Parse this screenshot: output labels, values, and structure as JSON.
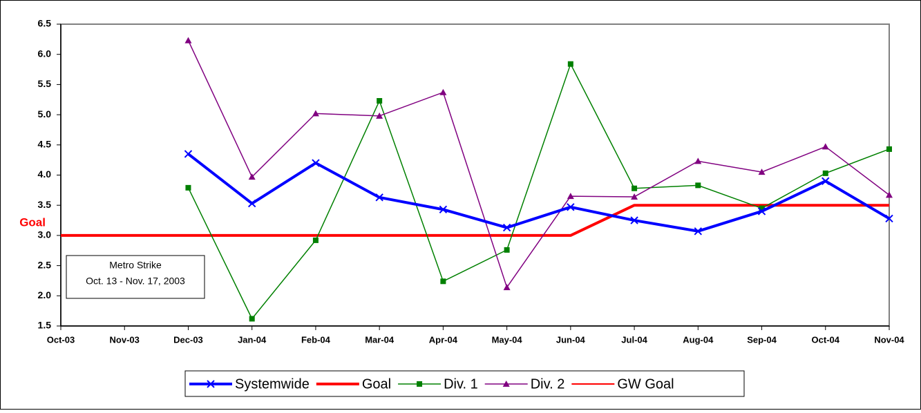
{
  "chart_data": {
    "type": "line",
    "categories": [
      "Oct-03",
      "Nov-03",
      "Dec-03",
      "Jan-04",
      "Feb-04",
      "Mar-04",
      "Apr-04",
      "May-04",
      "Jun-04",
      "Jul-04",
      "Aug-04",
      "Sep-04",
      "Oct-04",
      "Nov-04"
    ],
    "series": [
      {
        "name": "Systemwide",
        "color": "#0000ff",
        "width": 4,
        "marker": "x",
        "values": [
          null,
          null,
          4.35,
          3.53,
          4.2,
          3.63,
          3.43,
          3.13,
          3.47,
          3.25,
          3.07,
          3.4,
          3.9,
          3.28
        ]
      },
      {
        "name": "Goal",
        "color": "#ff0000",
        "width": 4,
        "marker": "none",
        "values": [
          3,
          3,
          3,
          3,
          3,
          3,
          3,
          3,
          3,
          3.5,
          3.5,
          3.5,
          3.5,
          3.5
        ]
      },
      {
        "name": "Div. 1",
        "color": "#008000",
        "width": 1.5,
        "marker": "square",
        "values": [
          null,
          null,
          3.79,
          1.62,
          2.92,
          5.23,
          2.24,
          2.76,
          5.84,
          3.78,
          3.83,
          3.45,
          4.03,
          4.43
        ]
      },
      {
        "name": "Div. 2",
        "color": "#800080",
        "width": 1.5,
        "marker": "triangle",
        "values": [
          null,
          null,
          6.23,
          3.97,
          5.02,
          4.98,
          5.37,
          2.14,
          3.65,
          3.64,
          4.23,
          4.05,
          4.47,
          3.67
        ]
      },
      {
        "name": "GW Goal",
        "color": "#ff0000",
        "width": 2,
        "marker": "none",
        "values": [
          null,
          null,
          null,
          null,
          null,
          null,
          null,
          null,
          null,
          null,
          null,
          null,
          null,
          null
        ]
      }
    ],
    "ylim": [
      1.5,
      6.5
    ],
    "yticks": [
      1.5,
      {
        "value": 2,
        "label": "2.0"
      },
      2.5,
      {
        "value": 3,
        "label": "3.0"
      },
      3.5,
      {
        "value": 4,
        "label": "4.0"
      },
      4.5,
      {
        "value": 5,
        "label": "5.0"
      },
      5.5,
      {
        "value": 6,
        "label": "6.0"
      },
      6.5
    ],
    "grid": false,
    "legend": "bottom",
    "annotations": {
      "goal_label": "Goal",
      "strike_title": "Metro Strike",
      "strike_dates": "Oct. 13 - Nov. 17, 2003"
    }
  }
}
